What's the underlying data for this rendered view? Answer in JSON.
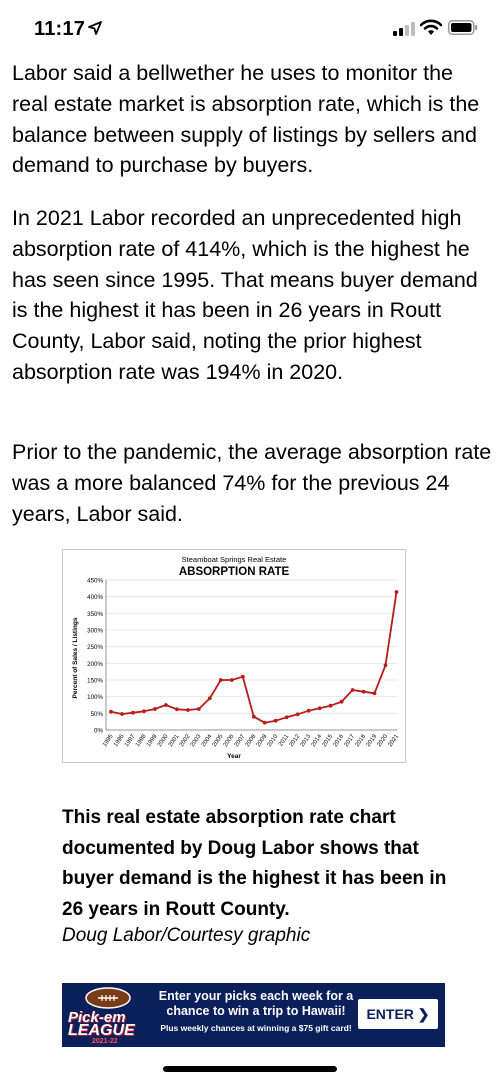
{
  "status_bar": {
    "time": "11:17",
    "icons": [
      "location-arrow-icon",
      "cellular-signal-icon",
      "wifi-icon",
      "battery-icon"
    ]
  },
  "article": {
    "paragraphs": [
      "Labor said a bellwether he uses to monitor the real estate market is absorption rate, which is the balance between supply of listings by sellers and demand to purchase by buyers.",
      "In 2021 Labor recorded an unprecedented high absorption rate of 414%, which is the highest he has seen since 1995. That means buyer demand is the highest it has been in 26 years in Routt County, Labor said, noting the prior highest absorption rate was 194% in 2020.",
      "Prior to the pandemic, the average absorption rate was a more balanced 74% for the previous 24 years, Labor said."
    ],
    "caption": "This real estate absorption rate chart documented by Doug Labor shows that buyer demand is the highest it has been in 26 years in Routt County.",
    "credit": "Doug Labor/Courtesy graphic"
  },
  "chart_data": {
    "type": "line",
    "subtitle": "Steamboat Springs Real Estate",
    "title": "ABSORPTION RATE",
    "xlabel": "Year",
    "ylabel": "Percent of Sales / Listings",
    "x": [
      "1995",
      "1996",
      "1997",
      "1998",
      "1999",
      "2000",
      "2001",
      "2002",
      "2003",
      "2004",
      "2005",
      "2006",
      "2007",
      "2008",
      "2009",
      "2010",
      "2011",
      "2012",
      "2013",
      "2014",
      "2015",
      "2016",
      "2017",
      "2018",
      "2019",
      "2020",
      "2021"
    ],
    "y_ticks": [
      "0%",
      "50%",
      "100%",
      "150%",
      "200%",
      "250%",
      "300%",
      "350%",
      "400%",
      "450%"
    ],
    "ylim": [
      0,
      450
    ],
    "series": [
      {
        "values": [
          55,
          48,
          52,
          56,
          63,
          75,
          62,
          60,
          63,
          95,
          150,
          150,
          160,
          40,
          22,
          28,
          38,
          47,
          58,
          65,
          73,
          85,
          120,
          115,
          110,
          194,
          414
        ]
      }
    ],
    "line_color": "#b81c1c",
    "grid": true
  },
  "ad": {
    "logo_line1": "Pick-em",
    "logo_line2": "LEAGUE",
    "logo_year": "2021-22",
    "headline": "Enter your picks each week for a chance to win a trip to Hawaii!",
    "sub": "Plus weekly chances at winning a $75 gift card!",
    "cta": "ENTER ❯",
    "colors": {
      "background": "#0b1f5b",
      "accent": "#c41e2a"
    }
  }
}
